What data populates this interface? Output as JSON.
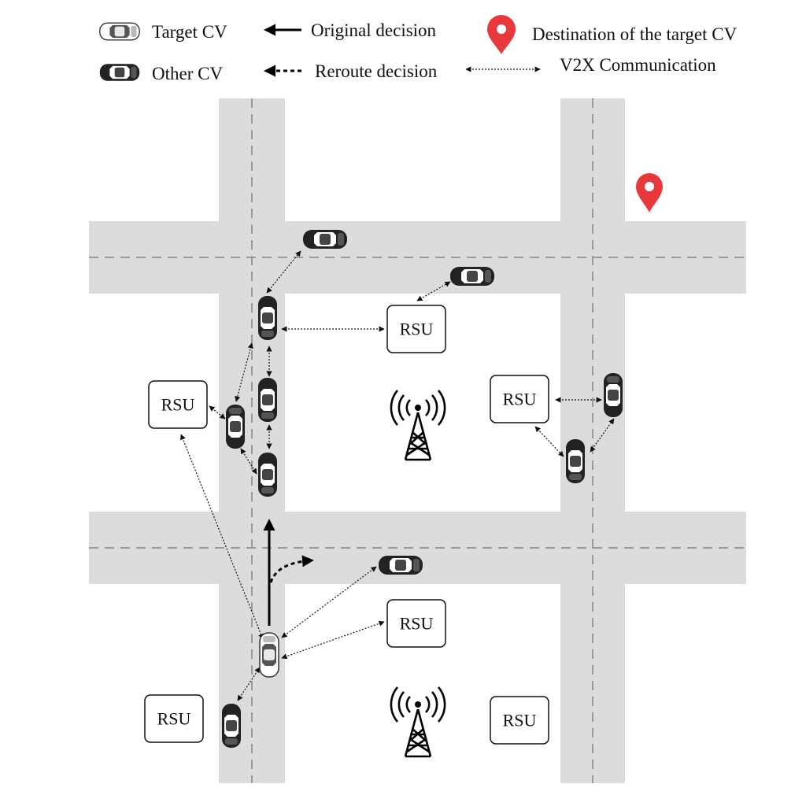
{
  "legend": {
    "target_cv": "Target CV",
    "other_cv": "Other CV",
    "original_decision": "Original decision",
    "reroute_decision": "Reroute decision",
    "destination": "Destination of the target CV",
    "v2x": "V2X Communication"
  },
  "rsu_label": "RSU",
  "colors": {
    "road": "#dcdcdc",
    "destination_pin": "#e8383b"
  }
}
